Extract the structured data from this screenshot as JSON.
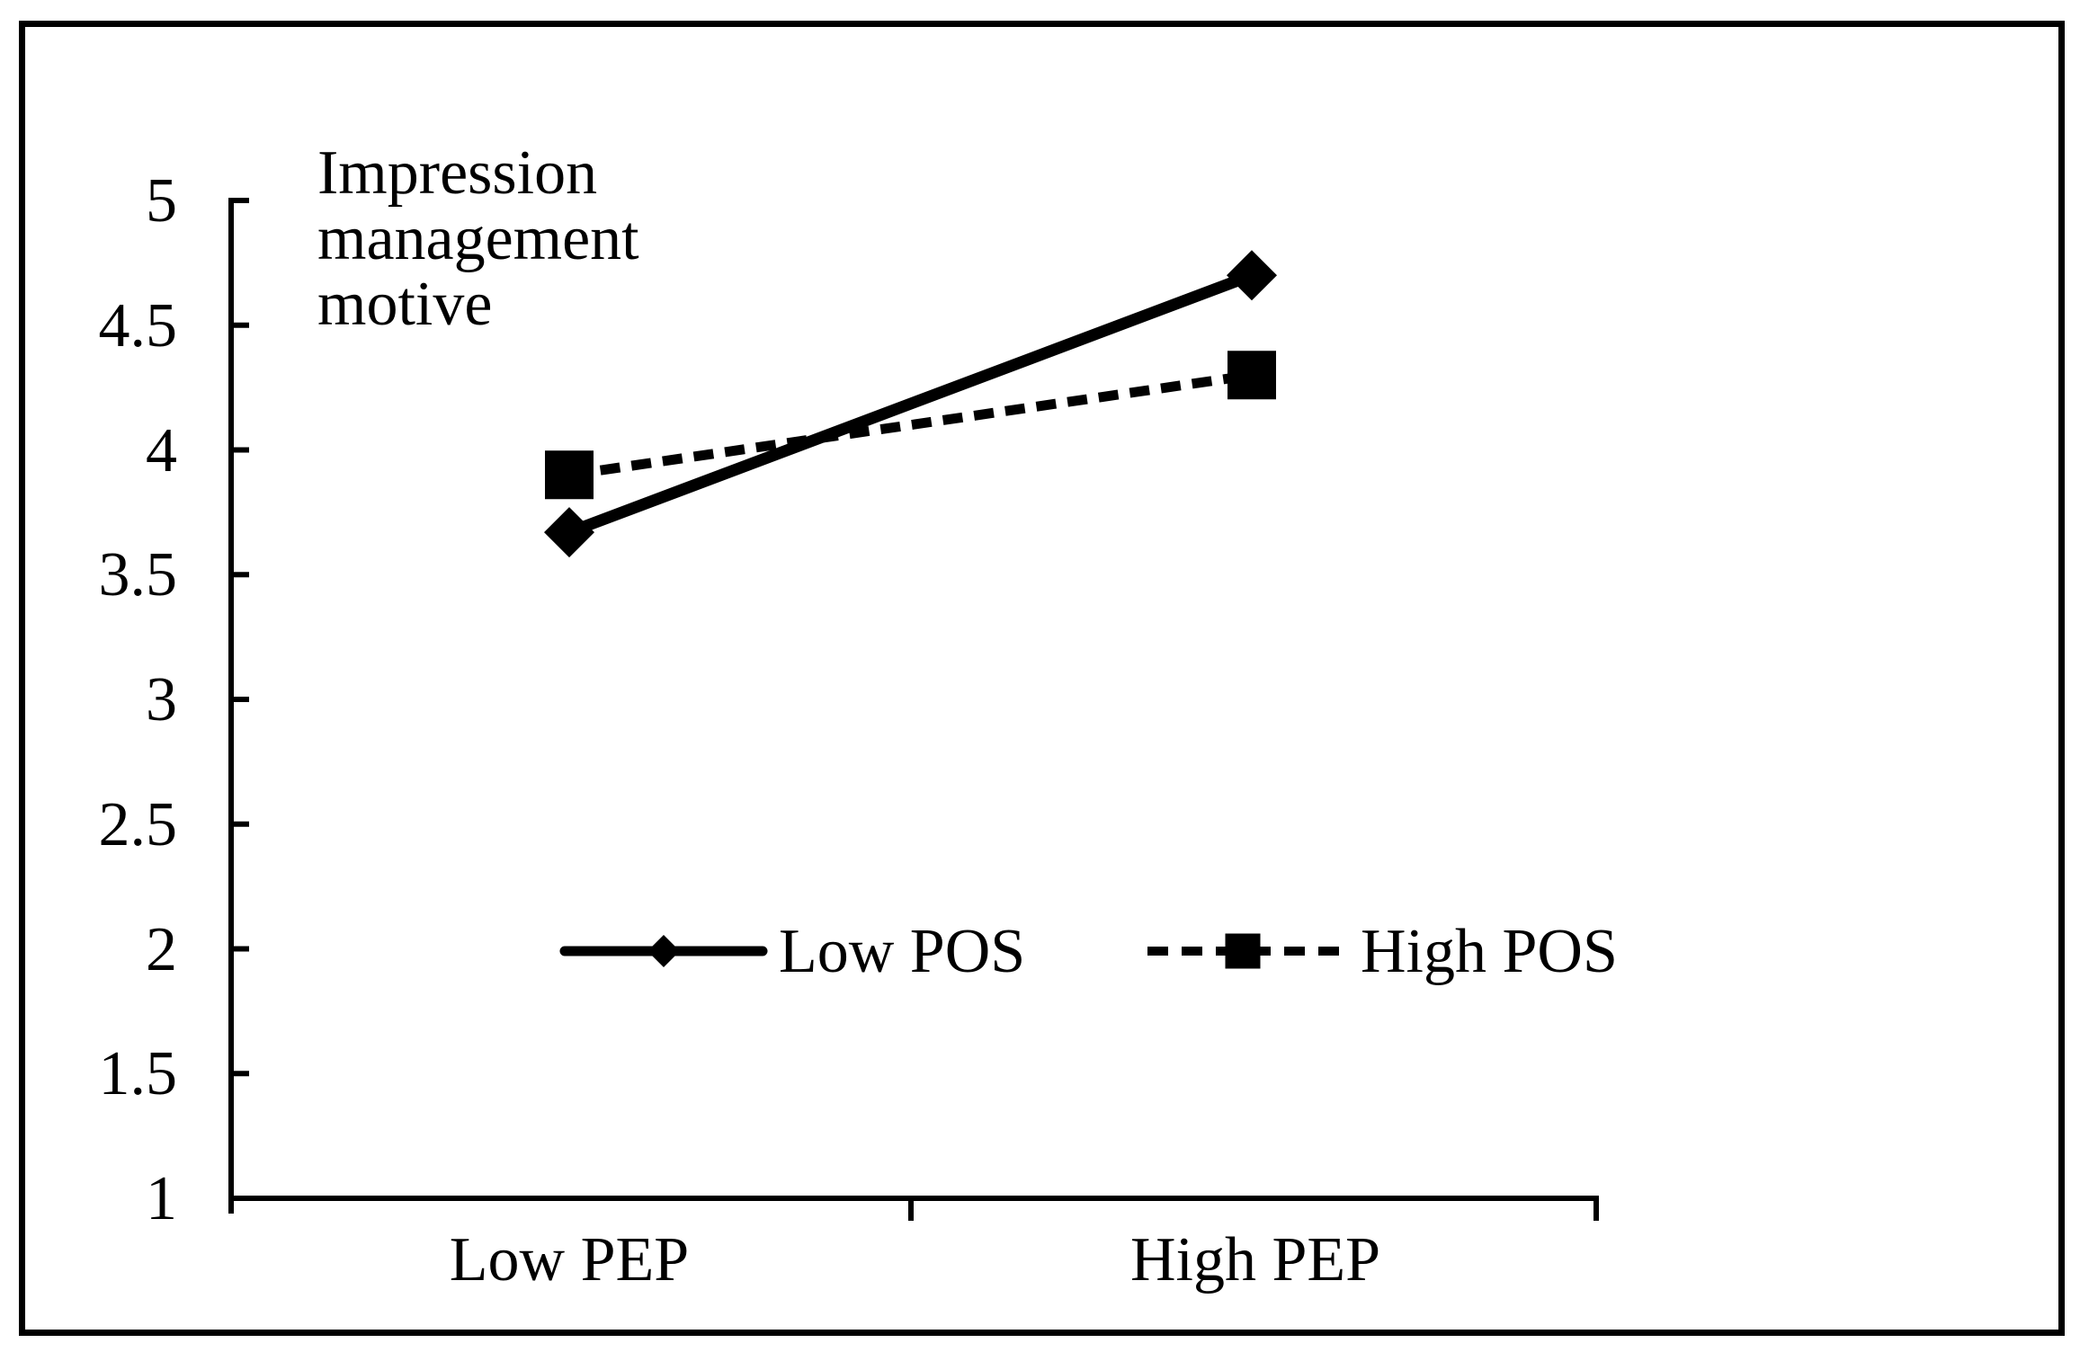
{
  "chart_data": {
    "type": "line",
    "title": "Impression management motive",
    "categories": [
      "Low PEP",
      "High PEP"
    ],
    "series": [
      {
        "name": "Low POS",
        "values": [
          3.67,
          4.7
        ],
        "marker": "diamond",
        "line": "solid"
      },
      {
        "name": "High POS",
        "values": [
          3.9,
          4.3
        ],
        "marker": "square",
        "line": "dashed"
      }
    ],
    "ylim": [
      1,
      5
    ],
    "ytick_step": 0.5,
    "yticks": [
      "5",
      "4.5",
      "4",
      "3.5",
      "3",
      "2.5",
      "2",
      "1.5",
      "1"
    ],
    "xlabel": "",
    "ylabel": "Impression management motive",
    "grid": false,
    "legend_position": "inside-middle",
    "colors": {
      "foreground": "#000000",
      "background": "#ffffff"
    }
  }
}
